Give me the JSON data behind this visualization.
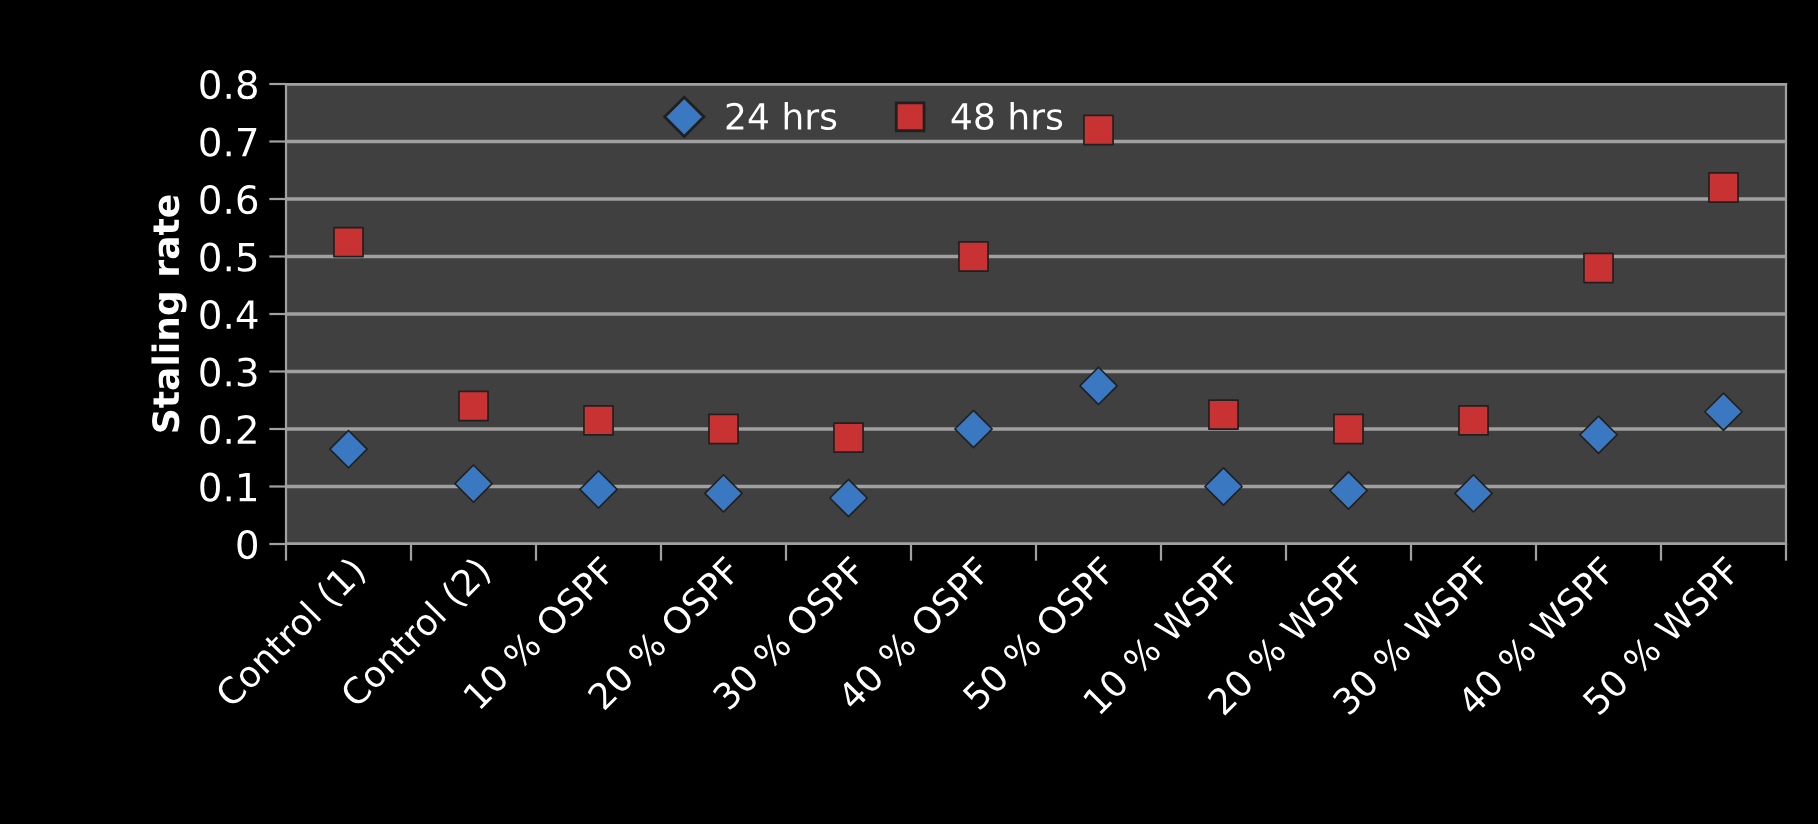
{
  "chart_data": {
    "type": "scatter",
    "ylabel": "Staling rate",
    "categories": [
      "Control (1)",
      "Control (2)",
      "10 % OSPF",
      "20 % OSPF",
      "30 % OSPF",
      "40 % OSPF",
      "50 % OSPF",
      "10 % WSPF",
      "20 % WSPF",
      "30 % WSPF",
      "40 % WSPF",
      "50 % WSPF"
    ],
    "series": [
      {
        "name": "24 hrs",
        "color": "#3a78c2",
        "marker": "diamond",
        "values": [
          0.165,
          0.105,
          0.095,
          0.088,
          0.08,
          0.2,
          0.275,
          0.1,
          0.093,
          0.088,
          0.19,
          0.23
        ]
      },
      {
        "name": "48 hrs",
        "color": "#c83232",
        "marker": "square",
        "values": [
          0.525,
          0.24,
          0.215,
          0.2,
          0.185,
          0.5,
          0.72,
          0.225,
          0.2,
          0.215,
          0.48,
          0.62
        ]
      }
    ],
    "ylim": [
      0,
      0.8
    ],
    "yticks": [
      0,
      0.1,
      0.2,
      0.3,
      0.4,
      0.5,
      0.6,
      0.7,
      0.8
    ],
    "grid": "y",
    "legend": "top"
  }
}
